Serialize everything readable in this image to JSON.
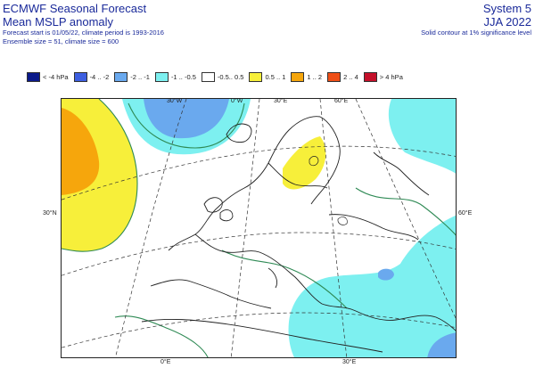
{
  "header": {
    "title_line1": "ECMWF Seasonal Forecast",
    "title_line2": "Mean MSLP anomaly",
    "forecast_info": "Forecast start is 01/05/22, climate period is 1993-2016",
    "ensemble_info": "Ensemble size = 51, climate size = 600",
    "system": "System 5",
    "season": "JJA 2022",
    "significance_note": "Solid contour at 1% significance level"
  },
  "legend": [
    {
      "label": "< -4 hPa",
      "color": "#0b1a8a"
    },
    {
      "label": "-4 .. -2",
      "color": "#3d5fe0"
    },
    {
      "label": "-2 .. -1",
      "color": "#6aa9ee"
    },
    {
      "label": "-1 .. -0.5",
      "color": "#7df0f0"
    },
    {
      "label": "-0.5.. 0.5",
      "color": "#ffffff"
    },
    {
      "label": "0.5 .. 1",
      "color": "#f7ef3a"
    },
    {
      "label": "1 .. 2",
      "color": "#f6a60c"
    },
    {
      "label": "2 .. 4",
      "color": "#ef4f16"
    },
    {
      "label": "> 4 hPa",
      "color": "#c4102a"
    }
  ],
  "map": {
    "lon_labels_top": [
      "30°W",
      "0°W",
      "30°E",
      "60°E"
    ],
    "lon_labels_bottom": [
      "0°E",
      "30°E"
    ],
    "lat_label_left": "30°N",
    "lat_label_right": "60°E"
  }
}
